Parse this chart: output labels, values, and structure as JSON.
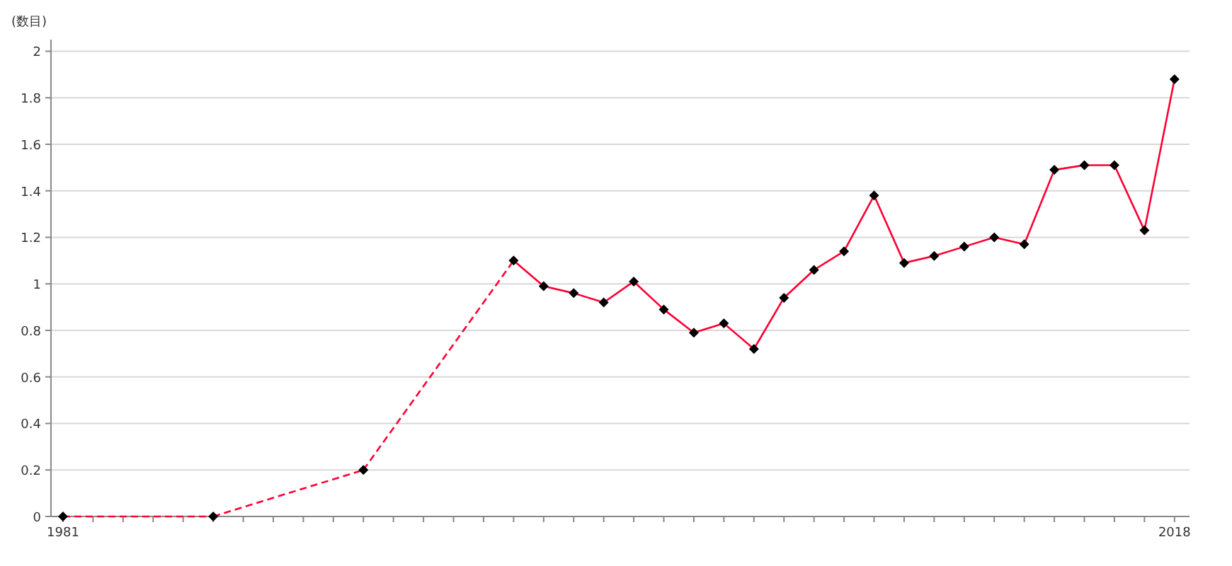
{
  "chart_data": {
    "type": "line",
    "ylabel": "(数目)",
    "series": [
      {
        "color": "#ff0033",
        "x": [
          1981,
          1982,
          1983,
          1984,
          1985,
          1986,
          1987,
          1988,
          1989,
          1990,
          1991,
          1992,
          1993,
          1994,
          1995,
          1996,
          1997,
          1998,
          1999,
          2000,
          2001,
          2002,
          2003,
          2004,
          2005,
          2006,
          2007,
          2008,
          2009,
          2010,
          2011,
          2012,
          2013,
          2014,
          2015,
          2016,
          2017,
          2018
        ],
        "values": [
          0,
          null,
          null,
          null,
          null,
          0,
          null,
          null,
          null,
          null,
          0.2,
          null,
          null,
          null,
          null,
          1.1,
          0.99,
          0.96,
          0.92,
          1.01,
          0.89,
          0.79,
          0.83,
          0.72,
          0.94,
          1.06,
          1.14,
          1.38,
          1.09,
          1.12,
          1.16,
          1.2,
          1.17,
          1.49,
          1.51,
          1.51,
          1.23,
          1.88
        ]
      }
    ],
    "marker": "diamond",
    "grid": "y",
    "xlim": [
      1980.6,
      2018.5
    ],
    "xticks": [
      1981,
      {
        "value": 1982,
        "label": null
      },
      {
        "value": 1983,
        "label": null
      },
      {
        "value": 1984,
        "label": null
      },
      {
        "value": 1985,
        "label": null
      },
      {
        "value": 1986,
        "label": null
      },
      {
        "value": 1987,
        "label": null
      },
      {
        "value": 1988,
        "label": null
      },
      {
        "value": 1989,
        "label": null
      },
      {
        "value": 1990,
        "label": null
      },
      {
        "value": 1991,
        "label": null
      },
      {
        "value": 1992,
        "label": null
      },
      {
        "value": 1993,
        "label": null
      },
      {
        "value": 1994,
        "label": null
      },
      {
        "value": 1995,
        "label": null
      },
      {
        "value": 1996,
        "label": null
      },
      {
        "value": 1997,
        "label": null
      },
      {
        "value": 1998,
        "label": null
      },
      {
        "value": 1999,
        "label": null
      },
      {
        "value": 2000,
        "label": null
      },
      {
        "value": 2001,
        "label": null
      },
      {
        "value": 2002,
        "label": null
      },
      {
        "value": 2003,
        "label": null
      },
      {
        "value": 2004,
        "label": null
      },
      {
        "value": 2005,
        "label": null
      },
      {
        "value": 2006,
        "label": null
      },
      {
        "value": 2007,
        "label": null
      },
      {
        "value": 2008,
        "label": null
      },
      {
        "value": 2009,
        "label": null
      },
      {
        "value": 2010,
        "label": null
      },
      {
        "value": 2011,
        "label": null
      },
      {
        "value": 2012,
        "label": null
      },
      {
        "value": 2013,
        "label": null
      },
      {
        "value": 2014,
        "label": null
      },
      {
        "value": 2015,
        "label": null
      },
      {
        "value": 2016,
        "label": null
      },
      {
        "value": 2017,
        "label": null
      },
      2018
    ],
    "ylim": [
      0,
      2.05
    ],
    "yticks": [
      0,
      0.2,
      0.4,
      0.6,
      0.8,
      1,
      1.2,
      1.4,
      1.6,
      1.8,
      2
    ]
  }
}
